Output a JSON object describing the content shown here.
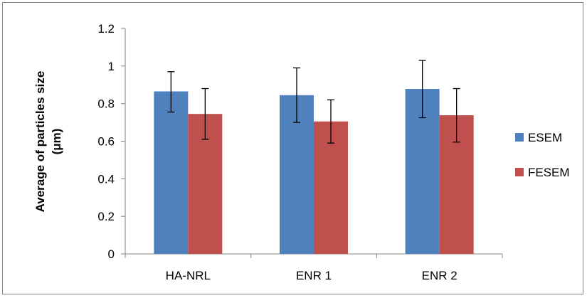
{
  "chart_data": {
    "type": "bar",
    "categories": [
      "HA-NRL",
      "ENR 1",
      "ENR 2"
    ],
    "series": [
      {
        "name": "ESEM",
        "color": "#4F81BD",
        "values": [
          0.865,
          0.845,
          0.878
        ],
        "error_low": [
          0.755,
          0.7,
          0.725
        ],
        "error_high": [
          0.97,
          0.99,
          1.03
        ]
      },
      {
        "name": "FESEM",
        "color": "#C0504D",
        "values": [
          0.745,
          0.705,
          0.738
        ],
        "error_low": [
          0.61,
          0.59,
          0.595
        ],
        "error_high": [
          0.88,
          0.82,
          0.88
        ]
      }
    ],
    "ylabel_line1": "Average of particles size",
    "ylabel_line2": "(μm)",
    "ylim": [
      0,
      1.2
    ],
    "yticks": [
      "0",
      "0.2",
      "0.4",
      "0.6",
      "0.8",
      "1",
      "1.2"
    ],
    "grid": false,
    "legend_position": "right"
  }
}
